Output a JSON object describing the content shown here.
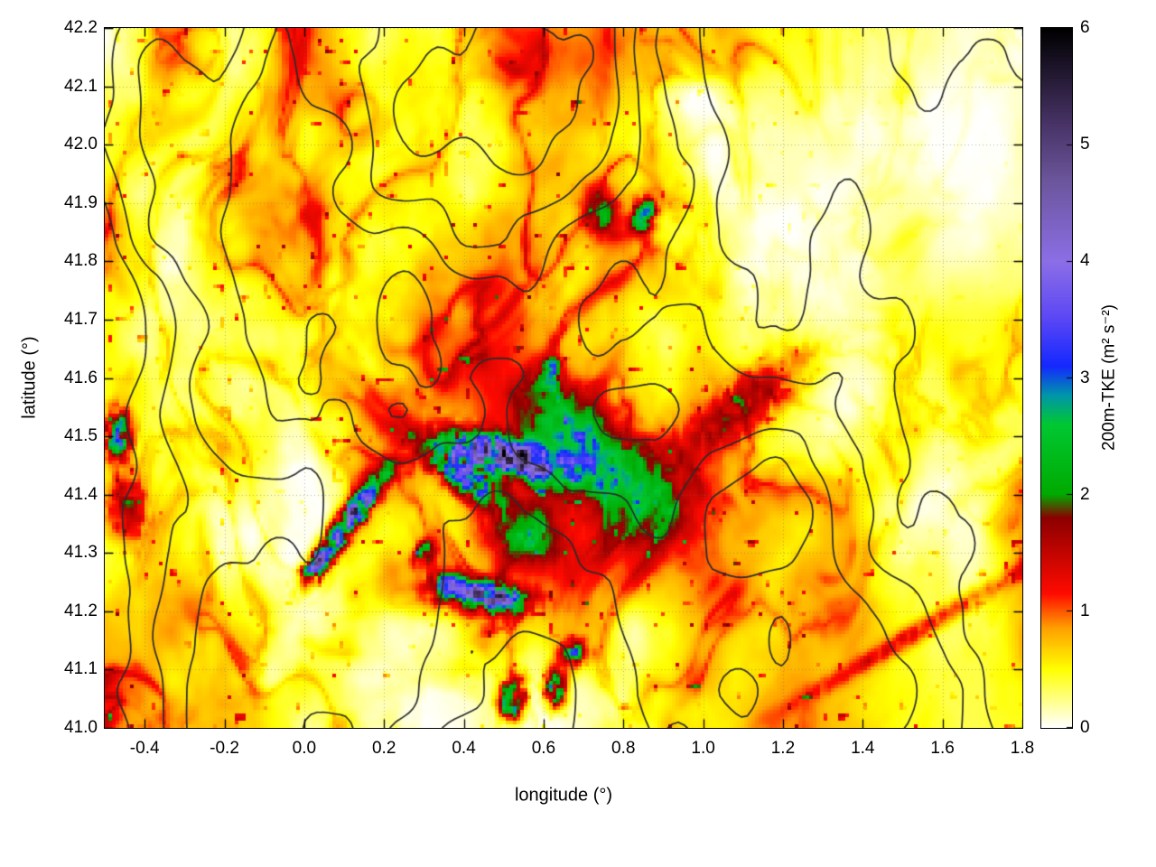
{
  "chart_data": {
    "type": "heatmap",
    "xlabel": "longitude (°)",
    "ylabel": "latitude (°)",
    "xlim": [
      -0.5,
      1.8
    ],
    "ylim": [
      41.0,
      42.2
    ],
    "x_ticks": [
      "-0.4",
      "-0.2",
      "0.0",
      "0.2",
      "0.4",
      "0.6",
      "0.8",
      "1.0",
      "1.2",
      "1.4",
      "1.6",
      "1.8"
    ],
    "y_ticks": [
      "41.0",
      "41.1",
      "41.2",
      "41.3",
      "41.4",
      "41.5",
      "41.6",
      "41.7",
      "41.8",
      "41.9",
      "42.0",
      "42.1",
      "42.2"
    ],
    "grid": "dotted",
    "overlay": "terrain-elevation-contours",
    "colorbar": {
      "label": "200m-TKE (m² s⁻²)",
      "range": [
        0,
        6
      ],
      "ticks": [
        "0",
        "1",
        "2",
        "3",
        "4",
        "5",
        "6"
      ],
      "colormap": [
        [
          0.0,
          "#ffffff"
        ],
        [
          0.5,
          "#ffff00"
        ],
        [
          0.85,
          "#ffa000"
        ],
        [
          1.15,
          "#ff0a00"
        ],
        [
          1.8,
          "#8c0000"
        ],
        [
          2.0,
          "#00aa00"
        ],
        [
          2.6,
          "#00c832"
        ],
        [
          2.85,
          "#0096aa"
        ],
        [
          3.1,
          "#1428ff"
        ],
        [
          3.5,
          "#5a46f5"
        ],
        [
          4.0,
          "#8c6ee6"
        ],
        [
          4.7,
          "#6b559b"
        ],
        [
          5.2,
          "#463264"
        ],
        [
          6.0,
          "#000000"
        ]
      ]
    },
    "hotspots": [
      {
        "lon": 0.5,
        "lat": 41.465,
        "intensity": 5.2,
        "rx": 0.14,
        "ry": 0.03,
        "rot": -10
      },
      {
        "lon": 0.4,
        "lat": 41.43,
        "intensity": 3.0,
        "rx": 0.1,
        "ry": 0.03,
        "rot": -25
      },
      {
        "lon": 0.12,
        "lat": 41.36,
        "intensity": 4.8,
        "rx": 0.1,
        "ry": 0.022,
        "rot": 42
      },
      {
        "lon": 0.03,
        "lat": 41.28,
        "intensity": 3.2,
        "rx": 0.05,
        "ry": 0.02,
        "rot": 42
      },
      {
        "lon": 0.47,
        "lat": 41.225,
        "intensity": 4.2,
        "rx": 0.09,
        "ry": 0.022,
        "rot": -5
      },
      {
        "lon": 0.36,
        "lat": 41.24,
        "intensity": 2.6,
        "rx": 0.05,
        "ry": 0.03,
        "rot": 0
      },
      {
        "lon": 0.52,
        "lat": 41.05,
        "intensity": 4.0,
        "rx": 0.035,
        "ry": 0.03,
        "rot": 60
      },
      {
        "lon": 0.63,
        "lat": 41.07,
        "intensity": 3.8,
        "rx": 0.03,
        "ry": 0.025,
        "rot": 80
      },
      {
        "lon": 0.68,
        "lat": 41.13,
        "intensity": 2.5,
        "rx": 0.03,
        "ry": 0.02,
        "rot": 0
      },
      {
        "lon": 0.85,
        "lat": 41.88,
        "intensity": 3.0,
        "rx": 0.035,
        "ry": 0.025,
        "rot": 45
      },
      {
        "lon": -0.465,
        "lat": 41.5,
        "intensity": 3.2,
        "rx": 0.035,
        "ry": 0.04,
        "rot": 0
      },
      {
        "lon": 0.62,
        "lat": 41.61,
        "intensity": 2.8,
        "rx": 0.022,
        "ry": 0.022,
        "rot": 0
      },
      {
        "lon": 0.3,
        "lat": 41.3,
        "intensity": 2.2,
        "rx": 0.03,
        "ry": 0.02,
        "rot": 30
      },
      {
        "lon": 1.12,
        "lat": 41.56,
        "intensity": 1.5,
        "rx": 0.18,
        "ry": 0.05,
        "rot": 25
      },
      {
        "lon": 0.82,
        "lat": 41.42,
        "intensity": 1.4,
        "rx": 0.16,
        "ry": 0.09,
        "rot": -20
      },
      {
        "lon": 1.55,
        "lat": 41.17,
        "intensity": 1.1,
        "rx": 0.3,
        "ry": 0.018,
        "rot": 22
      },
      {
        "lon": 0.75,
        "lat": 41.88,
        "intensity": 1.6,
        "rx": 0.05,
        "ry": 0.04,
        "rot": -30
      },
      {
        "lon": -0.45,
        "lat": 41.38,
        "intensity": 1.8,
        "rx": 0.05,
        "ry": 0.06,
        "rot": 0
      },
      {
        "lon": 0.55,
        "lat": 41.33,
        "intensity": 1.5,
        "rx": 0.1,
        "ry": 0.05,
        "rot": -15
      },
      {
        "lon": 0.65,
        "lat": 41.5,
        "intensity": 1.6,
        "rx": 0.12,
        "ry": 0.07,
        "rot": -30
      }
    ]
  }
}
